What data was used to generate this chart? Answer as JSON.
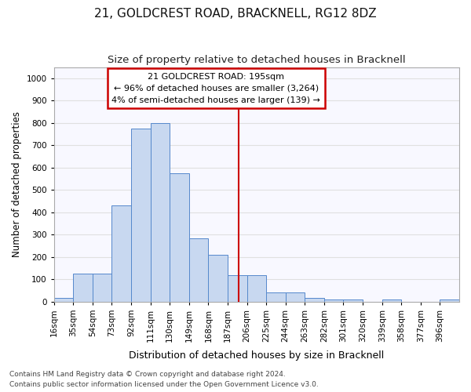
{
  "title": "21, GOLDCREST ROAD, BRACKNELL, RG12 8DZ",
  "subtitle": "Size of property relative to detached houses in Bracknell",
  "xlabel_bottom": "Distribution of detached houses by size in Bracknell",
  "ylabel": "Number of detached properties",
  "footer_line1": "Contains HM Land Registry data © Crown copyright and database right 2024.",
  "footer_line2": "Contains public sector information licensed under the Open Government Licence v3.0.",
  "bin_labels": [
    "16sqm",
    "35sqm",
    "54sqm",
    "73sqm",
    "92sqm",
    "111sqm",
    "130sqm",
    "149sqm",
    "168sqm",
    "187sqm",
    "206sqm",
    "225sqm",
    "244sqm",
    "263sqm",
    "282sqm",
    "301sqm",
    "320sqm",
    "339sqm",
    "358sqm",
    "377sqm",
    "396sqm"
  ],
  "bar_values": [
    18,
    125,
    125,
    430,
    775,
    800,
    575,
    285,
    210,
    120,
    120,
    42,
    42,
    15,
    10,
    10,
    0,
    8,
    0,
    0,
    8
  ],
  "bar_color": "#c8d8f0",
  "bar_edge_color": "#5588cc",
  "bin_edges": [
    16,
    35,
    54,
    73,
    92,
    111,
    130,
    149,
    168,
    187,
    206,
    225,
    244,
    263,
    282,
    301,
    320,
    339,
    358,
    377,
    396,
    415
  ],
  "annotation_line1": "21 GOLDCREST ROAD: 195sqm",
  "annotation_line2": "← 96% of detached houses are smaller (3,264)",
  "annotation_line3": "4% of semi-detached houses are larger (139) →",
  "annotation_box_color": "#ffffff",
  "annotation_box_edge": "#cc0000",
  "vline_color": "#cc0000",
  "vline_x": 197.5,
  "ylim": [
    0,
    1050
  ],
  "yticks": [
    0,
    100,
    200,
    300,
    400,
    500,
    600,
    700,
    800,
    900,
    1000
  ],
  "background_color": "#ffffff",
  "plot_background": "#f8f8ff",
  "grid_color": "#e0e0e0",
  "title_fontsize": 11,
  "subtitle_fontsize": 9.5,
  "tick_fontsize": 7.5,
  "ylabel_fontsize": 8.5,
  "footer_fontsize": 6.5
}
